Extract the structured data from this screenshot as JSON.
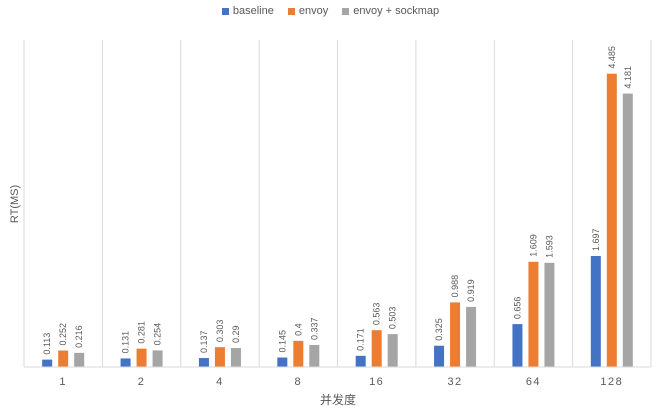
{
  "chart_data": {
    "type": "bar",
    "title": "",
    "xlabel": "并发度",
    "ylabel": "RT(MS)",
    "categories": [
      "1",
      "2",
      "4",
      "8",
      "16",
      "32",
      "64",
      "128"
    ],
    "series": [
      {
        "name": "baseline",
        "color": "#4472c4",
        "values": [
          0.113,
          0.131,
          0.137,
          0.145,
          0.171,
          0.325,
          0.656,
          1.697
        ]
      },
      {
        "name": "envoy",
        "color": "#ed7d31",
        "values": [
          0.252,
          0.281,
          0.303,
          0.4,
          0.563,
          0.988,
          1.609,
          4.485
        ]
      },
      {
        "name": "envoy + sockmap",
        "color": "#a5a5a5",
        "values": [
          0.216,
          0.254,
          0.29,
          0.337,
          0.503,
          0.919,
          1.593,
          4.181
        ]
      }
    ],
    "data_labels": [
      [
        "0.113",
        "0.131",
        "0.137",
        "0.145",
        "0.171",
        "0.325",
        "0.656",
        "1.697"
      ],
      [
        "0.252",
        "0.281",
        "0.303",
        "0.4",
        "0.563",
        "0.988",
        "1.609",
        "4.485"
      ],
      [
        "0.216",
        "0.254",
        "0.29",
        "0.337",
        "0.503",
        "0.919",
        "1.593",
        "4.181"
      ]
    ],
    "ylim": [
      0,
      5
    ],
    "grid": "vertical category separators",
    "legend": "top-center"
  }
}
